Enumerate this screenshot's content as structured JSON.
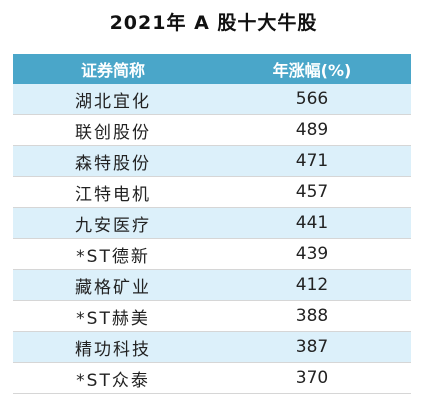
{
  "title": "2021年 A 股十大牛股",
  "chart_data": {
    "type": "table",
    "title": "2021年 A 股十大牛股",
    "columns": [
      "证券简称",
      "年涨幅(%)"
    ],
    "rows": [
      {
        "name": "湖北宜化",
        "value": 566
      },
      {
        "name": "联创股份",
        "value": 489
      },
      {
        "name": "森特股份",
        "value": 471
      },
      {
        "name": "江特电机",
        "value": 457
      },
      {
        "name": "九安医疗",
        "value": 441
      },
      {
        "name": "*ST德新",
        "value": 439
      },
      {
        "name": "藏格矿业",
        "value": 412
      },
      {
        "name": "*ST赫美",
        "value": 388
      },
      {
        "name": "精功科技",
        "value": 387
      },
      {
        "name": "*ST众泰",
        "value": 370
      }
    ]
  },
  "colors": {
    "header_bg": "#4aa6c9",
    "header_text": "#ffffff",
    "row_alt_bg": "#dcf0fa",
    "row_plain_bg": "#ffffff"
  }
}
